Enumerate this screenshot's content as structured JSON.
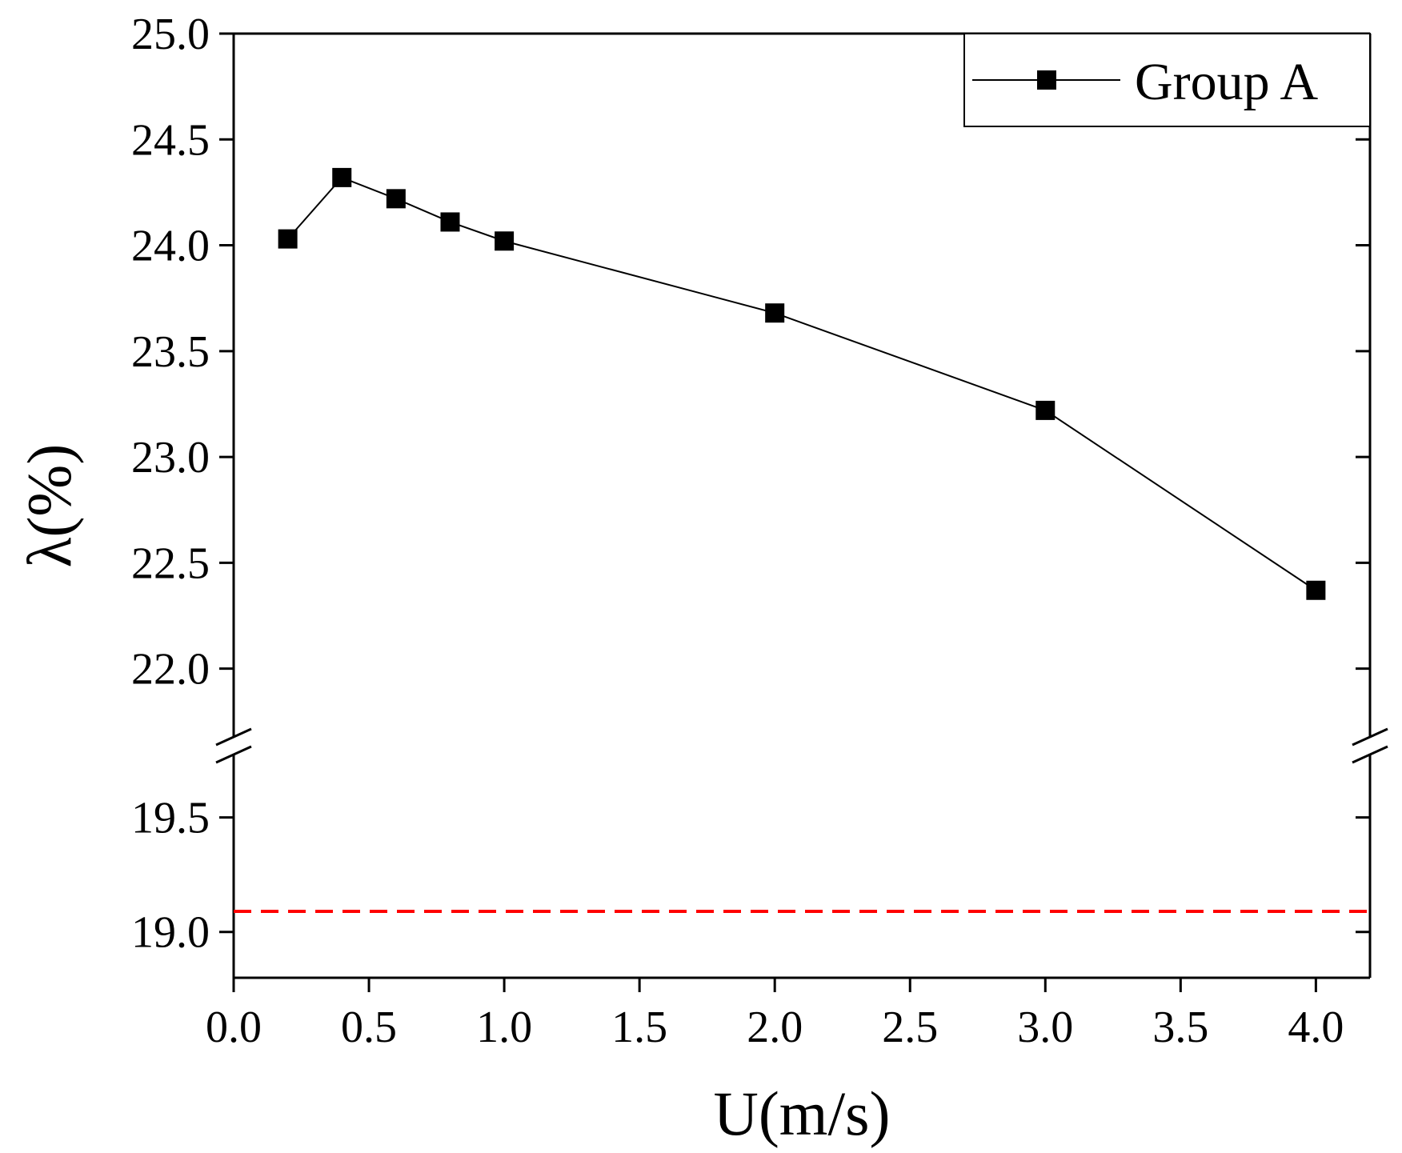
{
  "chart_data": {
    "type": "line",
    "title": "",
    "xlabel": "U(m/s)",
    "ylabel": "λ(%)",
    "xlim": [
      0.0,
      4.2
    ],
    "ylim_upper": [
      21.7,
      25.0
    ],
    "ylim_lower": [
      18.8,
      19.75
    ],
    "axis_break": "between 19.75 and 21.7",
    "x_ticks": [
      "0.0",
      "0.5",
      "1.0",
      "1.5",
      "2.0",
      "2.5",
      "3.0",
      "3.5",
      "4.0"
    ],
    "y_ticks_upper": [
      "22.0",
      "22.5",
      "23.0",
      "23.5",
      "24.0",
      "24.5",
      "25.0"
    ],
    "y_ticks_lower": [
      "19.0",
      "19.5"
    ],
    "grid": false,
    "legend_position": "top-right",
    "series": [
      {
        "name": "Group A",
        "marker": "square",
        "color": "#000000",
        "x": [
          0.2,
          0.4,
          0.6,
          0.8,
          1.0,
          2.0,
          3.0,
          4.0
        ],
        "y": [
          24.03,
          24.32,
          24.22,
          24.11,
          24.02,
          23.68,
          23.22,
          22.37
        ]
      }
    ],
    "reference_line": {
      "y": 19.09,
      "style": "dashed",
      "color": "#ff0000"
    }
  }
}
